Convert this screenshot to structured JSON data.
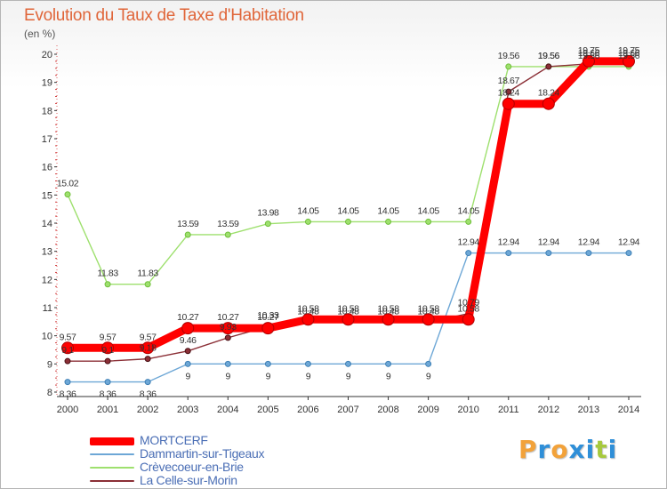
{
  "title": "Evolution du Taux de Taxe d'Habitation",
  "unit_label": "(en %)",
  "logo": {
    "letters": [
      "P",
      "r",
      "o",
      "x",
      "i",
      "t",
      "i"
    ],
    "colors": [
      "#f2a23a",
      "#2f8fd8",
      "#f2a23a",
      "#2f8fd8",
      "#2f8fd8",
      "#a7c93d",
      "#2f8fd8"
    ]
  },
  "chart_data": {
    "type": "line",
    "x": [
      "2000",
      "2001",
      "2002",
      "2003",
      "2004",
      "2005",
      "2006",
      "2007",
      "2008",
      "2009",
      "2010",
      "2011",
      "2012",
      "2013",
      "2014"
    ],
    "ylim": [
      8,
      20
    ],
    "yticks": [
      "8",
      "9",
      "10",
      "11",
      "12",
      "13",
      "14",
      "15",
      "16",
      "17",
      "18",
      "19",
      "20"
    ],
    "grid": false,
    "legend_position": "bottom-left",
    "series": [
      {
        "name": "MORTCERF",
        "color": "#ff0000",
        "values": [
          9.57,
          9.57,
          9.57,
          10.27,
          10.27,
          10.27,
          10.58,
          10.58,
          10.58,
          10.58,
          10.58,
          18.24,
          18.24,
          19.75,
          19.75
        ],
        "labels": [
          "9.57",
          "9.57",
          "9.57",
          "10.27",
          "10.27",
          "10.27",
          "10.58",
          "10.58",
          "10.58",
          "10.58",
          "10.58",
          "18.24",
          "18.24",
          "19.75",
          "19.75"
        ]
      },
      {
        "name": "Dammartin-sur-Tigeaux",
        "color": "#6da7d6",
        "values": [
          8.36,
          8.36,
          8.36,
          9,
          9,
          9,
          9,
          9,
          9,
          9,
          12.94,
          12.94,
          12.94,
          12.94,
          12.94
        ],
        "labels": [
          "8.36",
          "8.36",
          "8.36",
          "9",
          "9",
          "9",
          "9",
          "9",
          "9",
          "9",
          "12.94",
          "12.94",
          "12.94",
          "12.94",
          "12.94"
        ]
      },
      {
        "name": "Crèvecoeur-en-Brie",
        "color": "#9ee06e",
        "values": [
          15.02,
          11.83,
          11.83,
          13.59,
          13.59,
          13.98,
          14.05,
          14.05,
          14.05,
          14.05,
          14.05,
          19.56,
          19.56,
          19.56,
          19.56
        ],
        "labels": [
          "15.02",
          "11.83",
          "11.83",
          "13.59",
          "13.59",
          "13.98",
          "14.05",
          "14.05",
          "14.05",
          "14.05",
          "14.05",
          "19.56",
          "19.56",
          "19.56",
          "19.56"
        ]
      },
      {
        "name": "La Celle-sur-Morin",
        "color": "#8b2f36",
        "values": [
          9.1,
          9.1,
          9.18,
          9.46,
          9.93,
          10.33,
          10.48,
          10.48,
          10.48,
          10.48,
          10.79,
          18.67,
          19.56,
          19.66,
          19.66
        ],
        "labels": [
          "9.1",
          "9.1",
          "9.18",
          "9.46",
          "9.93",
          "10.33",
          "10.48",
          "10.48",
          "10.48",
          "10.48",
          "10.79",
          "18.67",
          "19.56",
          "19.66",
          "19.66"
        ]
      }
    ]
  }
}
